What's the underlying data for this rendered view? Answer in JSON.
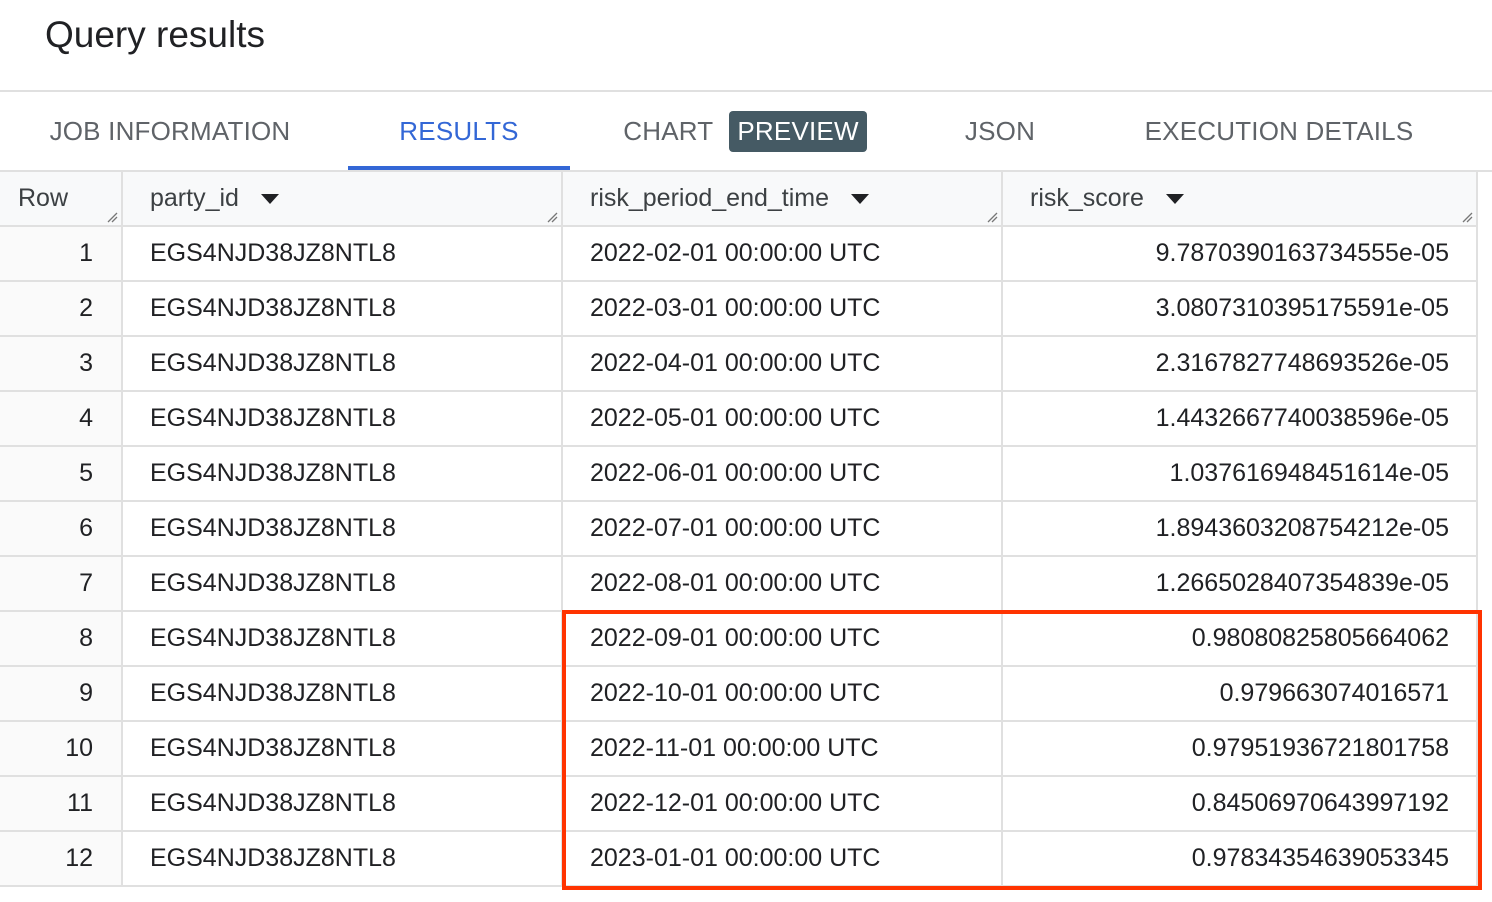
{
  "title": "Query results",
  "tabs": [
    {
      "label": "JOB INFORMATION",
      "active": false
    },
    {
      "label": "RESULTS",
      "active": true
    },
    {
      "label": "CHART",
      "badge": "PREVIEW",
      "active": false
    },
    {
      "label": "JSON",
      "active": false
    },
    {
      "label": "EXECUTION DETAILS",
      "active": false
    }
  ],
  "colors": {
    "accent": "#3367d6",
    "badge": "#455a64",
    "highlight": "#ff3300"
  },
  "table": {
    "columns": [
      "Row",
      "party_id",
      "risk_period_end_time",
      "risk_score"
    ],
    "rows": [
      [
        "1",
        "EGS4NJD38JZ8NTL8",
        "2022-02-01 00:00:00 UTC",
        "9.7870390163734555e-05"
      ],
      [
        "2",
        "EGS4NJD38JZ8NTL8",
        "2022-03-01 00:00:00 UTC",
        "3.0807310395175591e-05"
      ],
      [
        "3",
        "EGS4NJD38JZ8NTL8",
        "2022-04-01 00:00:00 UTC",
        "2.3167827748693526e-05"
      ],
      [
        "4",
        "EGS4NJD38JZ8NTL8",
        "2022-05-01 00:00:00 UTC",
        "1.4432667740038596e-05"
      ],
      [
        "5",
        "EGS4NJD38JZ8NTL8",
        "2022-06-01 00:00:00 UTC",
        "1.037616948451614e-05"
      ],
      [
        "6",
        "EGS4NJD38JZ8NTL8",
        "2022-07-01 00:00:00 UTC",
        "1.8943603208754212e-05"
      ],
      [
        "7",
        "EGS4NJD38JZ8NTL8",
        "2022-08-01 00:00:00 UTC",
        "1.2665028407354839e-05"
      ],
      [
        "8",
        "EGS4NJD38JZ8NTL8",
        "2022-09-01 00:00:00 UTC",
        "0.98080825805664062"
      ],
      [
        "9",
        "EGS4NJD38JZ8NTL8",
        "2022-10-01 00:00:00 UTC",
        "0.979663074016571"
      ],
      [
        "10",
        "EGS4NJD38JZ8NTL8",
        "2022-11-01 00:00:00 UTC",
        "0.97951936721801758"
      ],
      [
        "11",
        "EGS4NJD38JZ8NTL8",
        "2022-12-01 00:00:00 UTC",
        "0.84506970643997192"
      ],
      [
        "12",
        "EGS4NJD38JZ8NTL8",
        "2023-01-01 00:00:00 UTC",
        "0.97834354639053345"
      ]
    ]
  }
}
